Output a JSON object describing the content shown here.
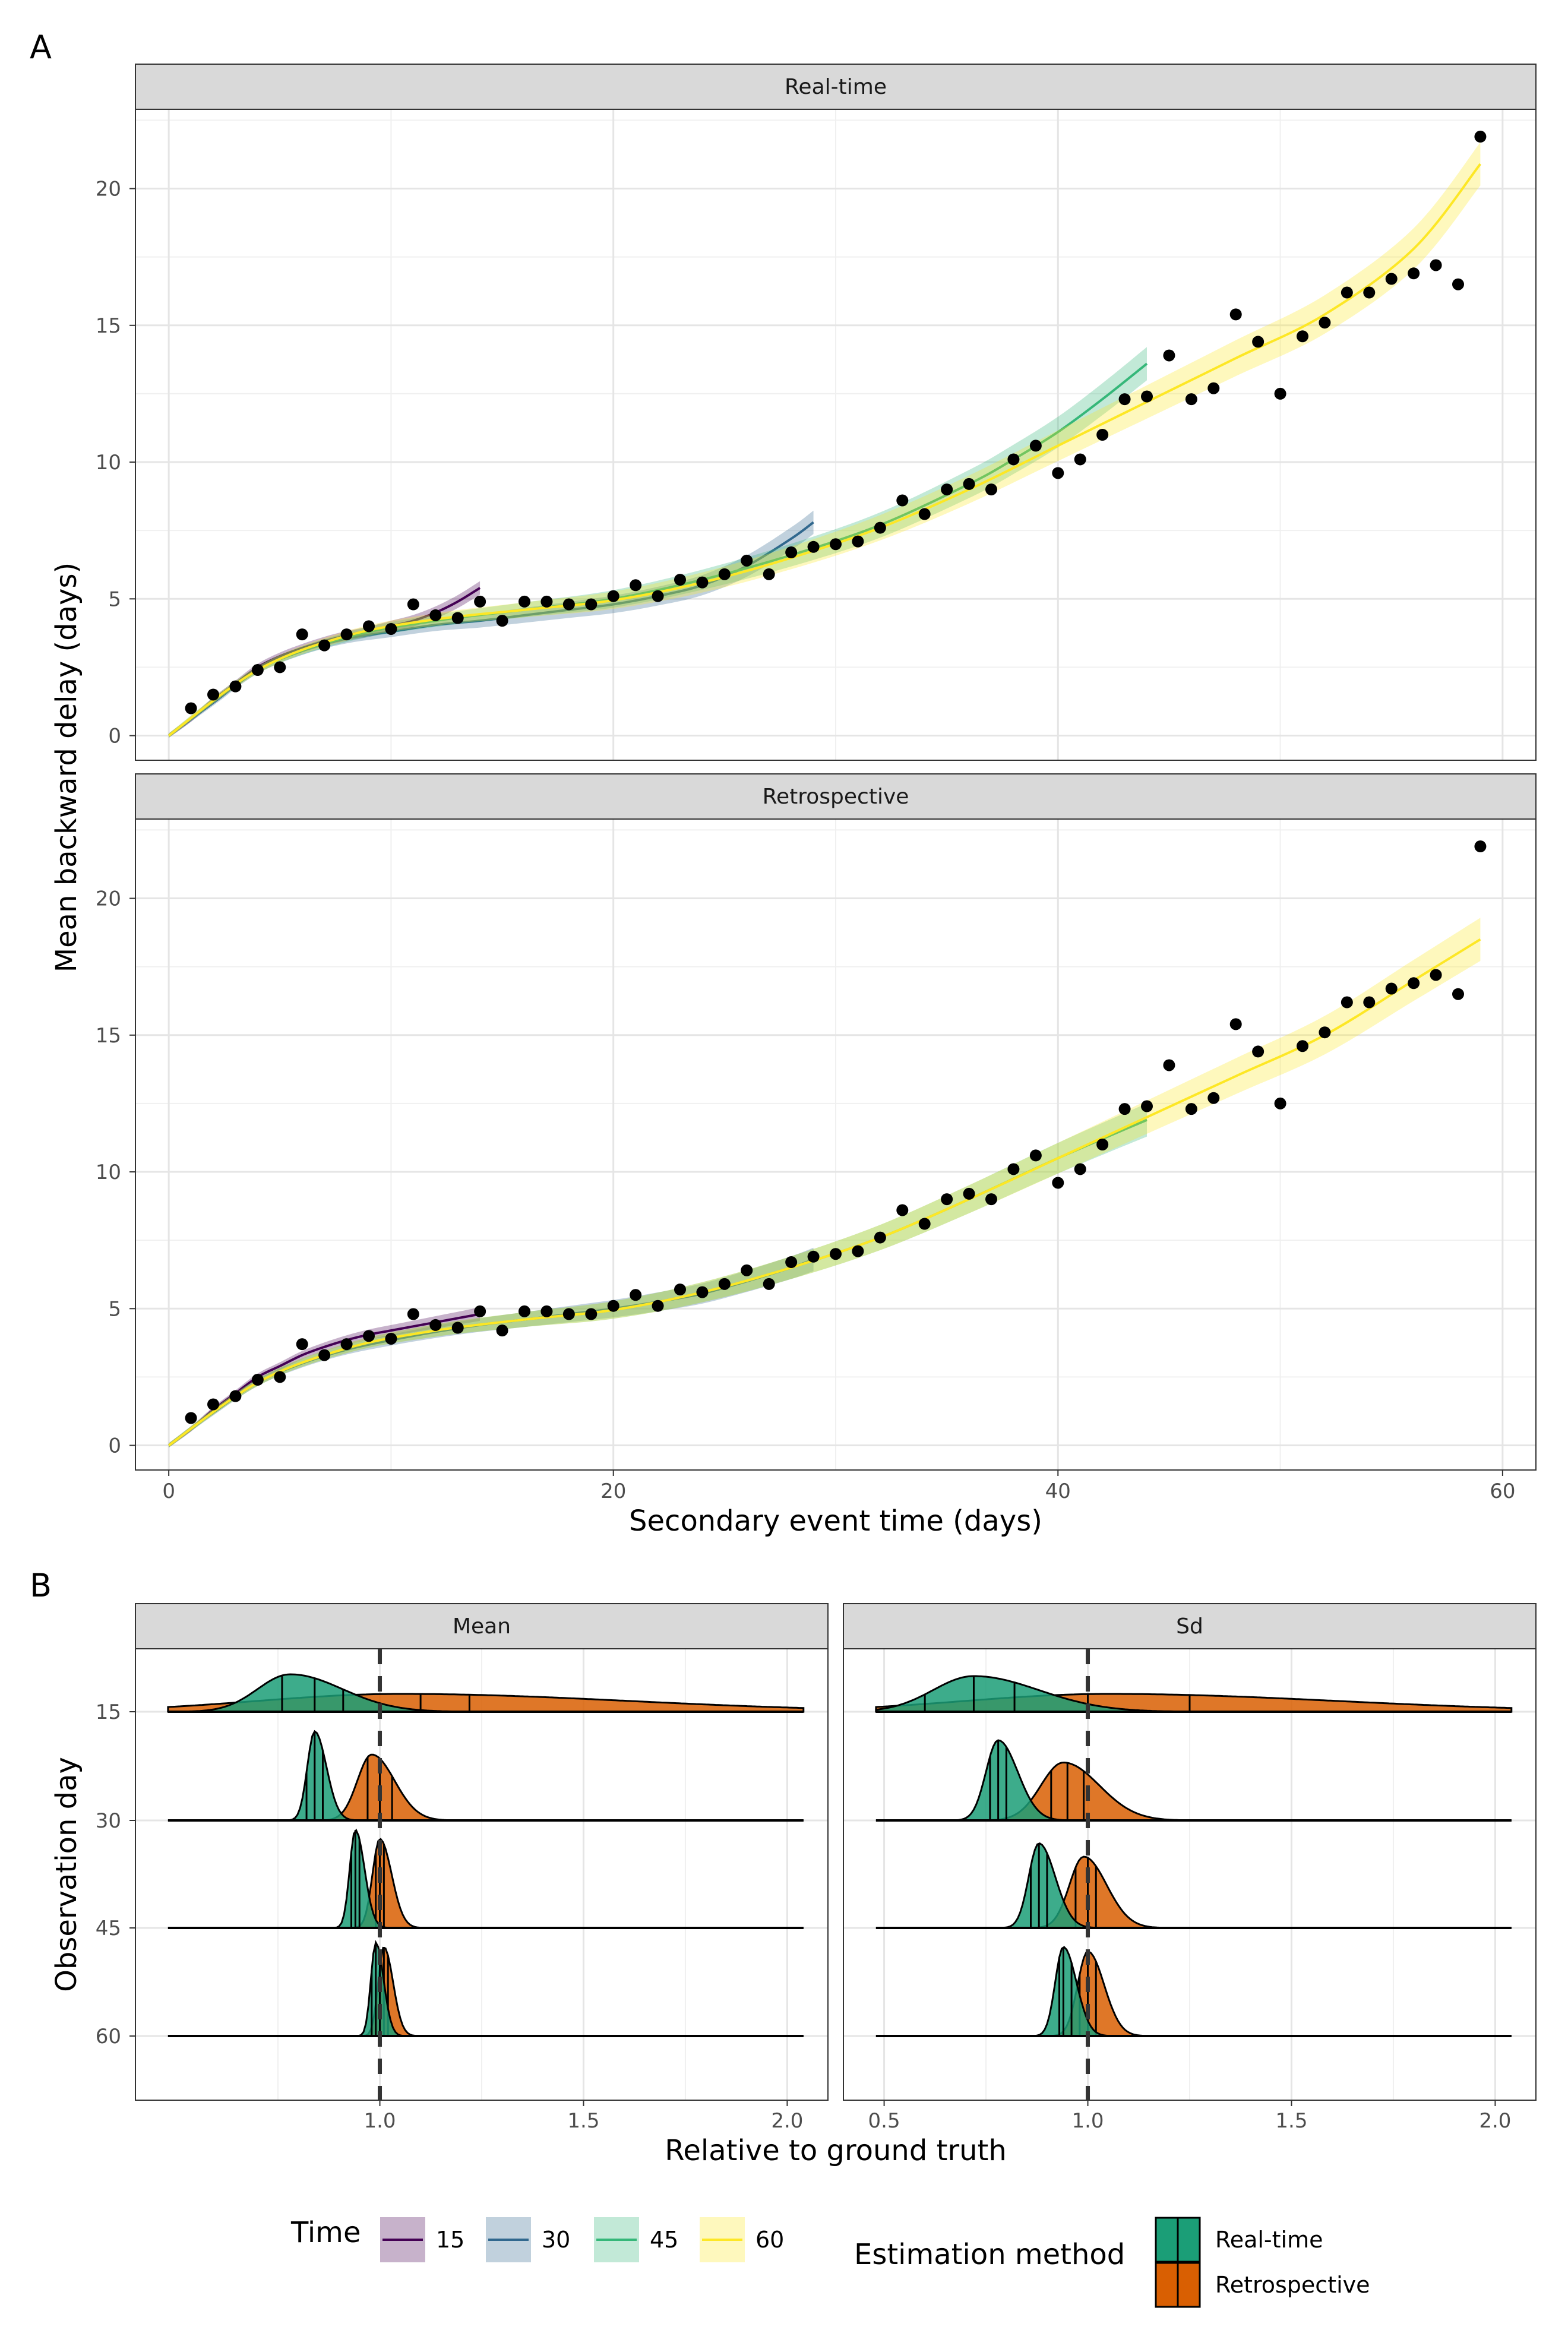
{
  "chart_data": [
    {
      "panel_label": "A",
      "type": "scatter",
      "xlabel": "Secondary event time (days)",
      "ylabel": "Mean backward delay (days)",
      "xlim": [
        -1.5,
        61.5
      ],
      "ylim": [
        -0.9,
        22.9
      ],
      "x_ticks": [
        0,
        20,
        40,
        60
      ],
      "y_ticks": [
        0,
        5,
        10,
        15,
        20
      ],
      "grid": true,
      "facets": [
        "Real-time",
        "Retrospective"
      ],
      "points": {
        "x": [
          1,
          2,
          3,
          4,
          5,
          6,
          7,
          8,
          9,
          10,
          11,
          12,
          13,
          14,
          15,
          16,
          17,
          18,
          19,
          20,
          21,
          22,
          23,
          24,
          25,
          26,
          27,
          28,
          29,
          30,
          31,
          32,
          33,
          34,
          35,
          36,
          37,
          38,
          39,
          40,
          41,
          42,
          43,
          44,
          45,
          46,
          47,
          48,
          49,
          50,
          51,
          52,
          53,
          54,
          55,
          56,
          57,
          58,
          59
        ],
        "y": [
          1.0,
          1.5,
          1.8,
          2.4,
          2.5,
          3.7,
          3.3,
          3.7,
          4.0,
          3.9,
          4.8,
          4.4,
          4.3,
          4.9,
          4.2,
          4.9,
          4.9,
          4.8,
          4.8,
          5.1,
          5.5,
          5.1,
          5.7,
          5.6,
          5.9,
          6.4,
          5.9,
          6.7,
          6.9,
          7.0,
          7.1,
          7.6,
          8.6,
          8.1,
          9.0,
          9.2,
          9.0,
          10.1,
          10.6,
          9.6,
          10.1,
          11.0,
          12.3,
          12.4,
          13.9,
          12.3,
          12.7,
          15.4,
          14.4,
          12.5,
          14.6,
          15.1,
          16.2,
          16.2,
          16.7,
          16.9,
          17.2,
          16.5,
          21.9
        ]
      },
      "time_series": {
        "Real-time": [
          {
            "name": "15",
            "x": [
              0,
              1,
              2,
              3,
              4,
              5,
              6,
              7,
              8,
              9,
              10,
              11,
              12,
              13,
              14
            ],
            "y": [
              0,
              0.6,
              1.3,
              1.9,
              2.5,
              2.9,
              3.2,
              3.45,
              3.65,
              3.8,
              4.0,
              4.2,
              4.5,
              4.9,
              5.4
            ]
          },
          {
            "name": "30",
            "x": [
              0,
              2,
              4,
              6,
              8,
              10,
              12,
              14,
              16,
              18,
              20,
              22,
              24,
              26,
              28,
              29
            ],
            "y": [
              0,
              1.2,
              2.4,
              3.1,
              3.55,
              3.8,
              4.05,
              4.2,
              4.4,
              4.6,
              4.8,
              5.1,
              5.5,
              6.2,
              7.2,
              7.8
            ]
          },
          {
            "name": "45",
            "x": [
              0,
              4,
              8,
              12,
              16,
              20,
              24,
              28,
              32,
              36,
              38,
              40,
              42,
              44
            ],
            "y": [
              0,
              2.4,
              3.6,
              4.2,
              4.6,
              5.0,
              5.7,
              6.6,
              7.7,
              9.2,
              10.1,
              11.1,
              12.3,
              13.6
            ]
          },
          {
            "name": "60",
            "x": [
              0,
              4,
              8,
              12,
              16,
              20,
              24,
              28,
              32,
              36,
              40,
              44,
              48,
              52,
              56,
              59
            ],
            "y": [
              0,
              2.4,
              3.65,
              4.25,
              4.6,
              4.95,
              5.6,
              6.5,
              7.6,
              9.0,
              10.6,
              12.2,
              13.8,
              15.4,
              17.8,
              20.9
            ]
          }
        ],
        "Retrospective": [
          {
            "name": "15",
            "x": [
              0,
              1,
              2,
              3,
              4,
              5,
              6,
              7,
              8,
              9,
              10,
              11,
              12,
              13,
              14
            ],
            "y": [
              0,
              0.6,
              1.3,
              1.9,
              2.5,
              2.9,
              3.3,
              3.6,
              3.85,
              4.05,
              4.2,
              4.35,
              4.5,
              4.65,
              4.8
            ]
          },
          {
            "name": "30",
            "x": [
              0,
              2,
              4,
              6,
              8,
              10,
              12,
              14,
              16,
              18,
              20,
              22,
              24,
              26,
              28,
              29
            ],
            "y": [
              0,
              1.2,
              2.3,
              3.0,
              3.5,
              3.85,
              4.15,
              4.4,
              4.6,
              4.8,
              5.0,
              5.25,
              5.55,
              6.0,
              6.5,
              6.8
            ]
          },
          {
            "name": "45",
            "x": [
              0,
              4,
              8,
              12,
              16,
              20,
              24,
              28,
              32,
              36,
              40,
              44
            ],
            "y": [
              0,
              2.3,
              3.55,
              4.2,
              4.6,
              4.95,
              5.6,
              6.5,
              7.6,
              9.0,
              10.5,
              11.9
            ]
          },
          {
            "name": "60",
            "x": [
              0,
              4,
              8,
              12,
              16,
              20,
              24,
              28,
              32,
              36,
              40,
              44,
              48,
              52,
              56,
              59
            ],
            "y": [
              0,
              2.3,
              3.55,
              4.2,
              4.6,
              4.95,
              5.6,
              6.5,
              7.6,
              9.0,
              10.5,
              12.0,
              13.5,
              15.0,
              17.0,
              18.5
            ]
          }
        ]
      }
    },
    {
      "panel_label": "B",
      "type": "area",
      "xlabel": "Relative to ground truth",
      "ylabel": "Observation day",
      "categories": [
        "15",
        "30",
        "45",
        "60"
      ],
      "grid": true,
      "reference_line": 1.0,
      "facets": [
        {
          "name": "Mean",
          "xlim": [
            0.4,
            2.1
          ],
          "x_ticks": [
            1.0,
            1.5,
            2.0
          ],
          "x_tick_labels": [
            "1.0",
            "1.5",
            "2.0"
          ],
          "densities": [
            {
              "day": "15",
              "Real-time": {
                "mode": 0.78,
                "sd": 0.08,
                "height": 0.42,
                "quantiles": [
                  0.76,
                  0.84,
                  0.91
                ]
              },
              "Retrospective": {
                "mode": 1.05,
                "sd": 0.35,
                "height": 0.2,
                "quantiles": [
                  1.1,
                  1.22
                ]
              }
            },
            {
              "day": "30",
              "Real-time": {
                "mode": 0.84,
                "sd": 0.018,
                "height": 1.0,
                "quantiles": [
                  0.82,
                  0.84,
                  0.86
                ]
              },
              "Retrospective": {
                "mode": 0.98,
                "sd": 0.035,
                "height": 0.74,
                "quantiles": [
                  0.97,
                  1.0,
                  1.03
                ]
              }
            },
            {
              "day": "45",
              "Real-time": {
                "mode": 0.94,
                "sd": 0.014,
                "height": 1.1,
                "quantiles": [
                  0.93,
                  0.94,
                  0.95
                ]
              },
              "Retrospective": {
                "mode": 1.0,
                "sd": 0.018,
                "height": 1.0,
                "quantiles": [
                  0.99,
                  1.0,
                  1.01
                ]
              }
            },
            {
              "day": "60",
              "Real-time": {
                "mode": 0.99,
                "sd": 0.012,
                "height": 1.05,
                "quantiles": [
                  0.98,
                  0.99,
                  1.0
                ]
              },
              "Retrospective": {
                "mode": 1.01,
                "sd": 0.014,
                "height": 1.0,
                "quantiles": [
                  1.0,
                  1.01,
                  1.02
                ]
              }
            }
          ]
        },
        {
          "name": "Sd",
          "xlim": [
            0.4,
            2.1
          ],
          "x_ticks": [
            0.5,
            1.0,
            1.5,
            2.0
          ],
          "x_tick_labels": [
            "0.5",
            "1.0",
            "1.5",
            "2.0"
          ],
          "densities": [
            {
              "day": "15",
              "Real-time": {
                "mode": 0.72,
                "sd": 0.1,
                "height": 0.4,
                "quantiles": [
                  0.6,
                  0.72,
                  0.82
                ]
              },
              "Retrospective": {
                "mode": 1.05,
                "sd": 0.35,
                "height": 0.2,
                "quantiles": [
                  1.0,
                  1.25
                ]
              }
            },
            {
              "day": "30",
              "Real-time": {
                "mode": 0.78,
                "sd": 0.03,
                "height": 0.9,
                "quantiles": [
                  0.76,
                  0.78,
                  0.8
                ]
              },
              "Retrospective": {
                "mode": 0.94,
                "sd": 0.055,
                "height": 0.65,
                "quantiles": [
                  0.91,
                  0.95,
                  0.99
                ]
              }
            },
            {
              "day": "45",
              "Real-time": {
                "mode": 0.88,
                "sd": 0.025,
                "height": 0.95,
                "quantiles": [
                  0.86,
                  0.88,
                  0.9
                ]
              },
              "Retrospective": {
                "mode": 0.99,
                "sd": 0.035,
                "height": 0.8,
                "quantiles": [
                  0.97,
                  1.0,
                  1.02
                ]
              }
            },
            {
              "day": "60",
              "Real-time": {
                "mode": 0.94,
                "sd": 0.02,
                "height": 1.0,
                "quantiles": [
                  0.93,
                  0.94,
                  0.96
                ]
              },
              "Retrospective": {
                "mode": 1.0,
                "sd": 0.025,
                "height": 0.95,
                "quantiles": [
                  0.98,
                  1.0,
                  1.02
                ]
              }
            }
          ]
        }
      ]
    }
  ],
  "legend": {
    "time_title": "Time",
    "time_items": [
      {
        "label": "15",
        "color": "#440154"
      },
      {
        "label": "30",
        "color": "#31688e"
      },
      {
        "label": "45",
        "color": "#35b779"
      },
      {
        "label": "60",
        "color": "#fde725"
      }
    ],
    "method_title": "Estimation method",
    "method_items": [
      {
        "label": "Real-time",
        "color": "#1b9e77"
      },
      {
        "label": "Retrospective",
        "color": "#d95f02"
      }
    ]
  }
}
